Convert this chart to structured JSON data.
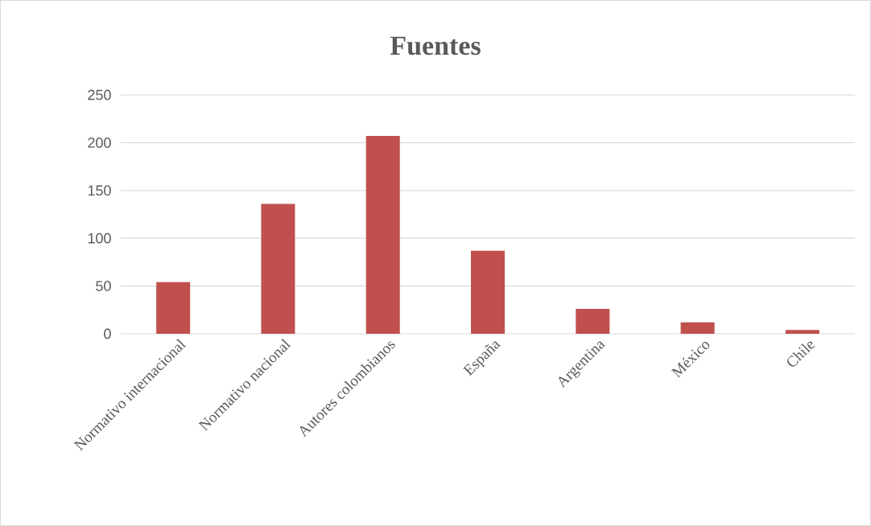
{
  "chart_data": {
    "type": "bar",
    "title": "Fuentes",
    "categories": [
      "Normativo internacional",
      "Normativo nacional",
      "Autores colombianos",
      "España",
      "Argentina",
      "México",
      "Chile"
    ],
    "values": [
      54,
      136,
      207,
      87,
      26,
      12,
      4
    ],
    "color": "#c0504d",
    "ylim": [
      0,
      250
    ],
    "yticks": [
      0,
      50,
      100,
      150,
      200,
      250
    ],
    "grid": "y"
  }
}
